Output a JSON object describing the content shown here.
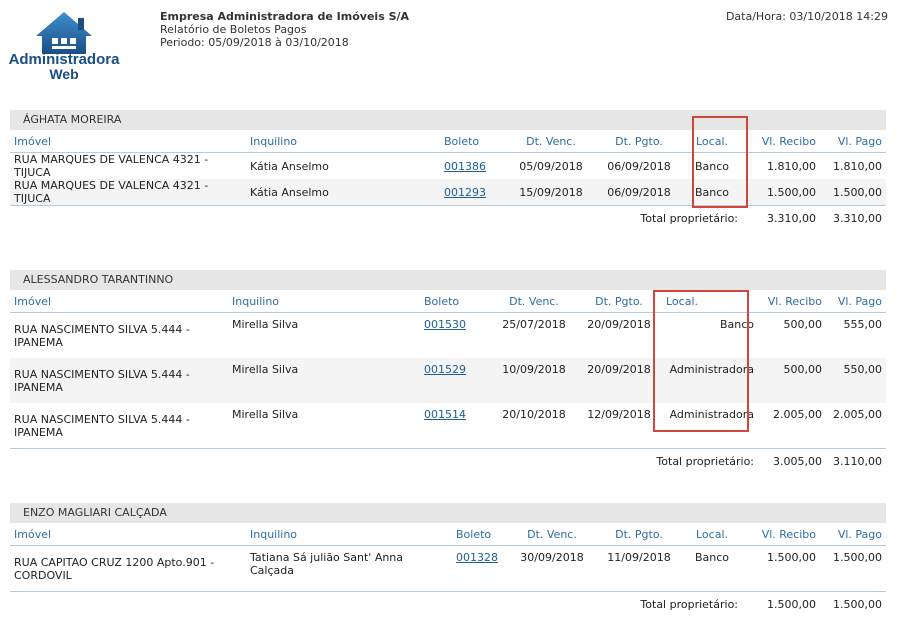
{
  "header": {
    "logo_line1": "Administradora",
    "logo_line2": "Web",
    "company_name": "Empresa Administradora de Imóveis S/A",
    "report_title": "Relatório de Boletos Pagos",
    "period": "Periodo: 05/09/2018 à 03/10/2018",
    "datetime": "Data/Hora: 03/10/2018 14:29"
  },
  "columns": {
    "imovel": "Imóvel",
    "inquilino": "Inquilino",
    "boleto": "Boleto",
    "dt_venc": "Dt. Venc.",
    "dt_pgto": "Dt. Pgto.",
    "local": "Local.",
    "vl_recibo": "Vl. Recibo",
    "vl_pago": "Vl. Pago"
  },
  "total_label": "Total proprietário:",
  "groups": [
    {
      "owner": "ÁGHATA MOREIRA",
      "rows": [
        {
          "imovel": "RUA MARQUES DE VALENCA 4321 - TIJUCA",
          "inquilino": "Kátia Anselmo",
          "boleto": "001386",
          "dt_venc": "05/09/2018",
          "dt_pgto": "06/09/2018",
          "local": "Banco",
          "vl_recibo": "1.810,00",
          "vl_pago": "1.810,00"
        },
        {
          "imovel": "RUA MARQUES DE VALENCA 4321 - TIJUCA",
          "inquilino": "Kátia Anselmo",
          "boleto": "001293",
          "dt_venc": "15/09/2018",
          "dt_pgto": "06/09/2018",
          "local": "Banco",
          "vl_recibo": "1.500,00",
          "vl_pago": "1.500,00"
        }
      ],
      "total_recibo": "3.310,00",
      "total_pago": "3.310,00"
    },
    {
      "owner": "ALESSANDRO TARANTINNO",
      "rows": [
        {
          "imovel_l1": "RUA NASCIMENTO SILVA 5.444 -",
          "imovel_l2": "IPANEMA",
          "inquilino": "Mirella Silva",
          "boleto": "001530",
          "dt_venc": "25/07/2018",
          "dt_pgto": "20/09/2018",
          "local": "Banco",
          "vl_recibo": "500,00",
          "vl_pago": "555,00"
        },
        {
          "imovel_l1": "RUA NASCIMENTO SILVA 5.444 -",
          "imovel_l2": "IPANEMA",
          "inquilino": "Mirella Silva",
          "boleto": "001529",
          "dt_venc": "10/09/2018",
          "dt_pgto": "20/09/2018",
          "local": "Administradora",
          "vl_recibo": "500,00",
          "vl_pago": "550,00"
        },
        {
          "imovel_l1": "RUA NASCIMENTO SILVA 5.444 -",
          "imovel_l2": "IPANEMA",
          "inquilino": "Mirella Silva",
          "boleto": "001514",
          "dt_venc": "20/10/2018",
          "dt_pgto": "12/09/2018",
          "local": "Administradora",
          "vl_recibo": "2.005,00",
          "vl_pago": "2.005,00"
        }
      ],
      "total_recibo": "3.005,00",
      "total_pago": "3.110,00"
    },
    {
      "owner": "ENZO MAGLIARI CALÇADA",
      "rows": [
        {
          "imovel_l1": "RUA CAPITAO CRUZ 1200 Apto.901 -",
          "imovel_l2": "CORDOVIL",
          "inquilino": "Tatiana Sá julião Sant' Anna Calçada",
          "boleto": "001328",
          "dt_venc": "30/09/2018",
          "dt_pgto": "11/09/2018",
          "local": "Banco",
          "vl_recibo": "1.500,00",
          "vl_pago": "1.500,00"
        }
      ],
      "total_recibo": "1.500,00",
      "total_pago": "1.500,00"
    }
  ],
  "colors": {
    "accent": "#2c6da4",
    "highlight": "#d0463b",
    "logo": "#1a4e84"
  }
}
